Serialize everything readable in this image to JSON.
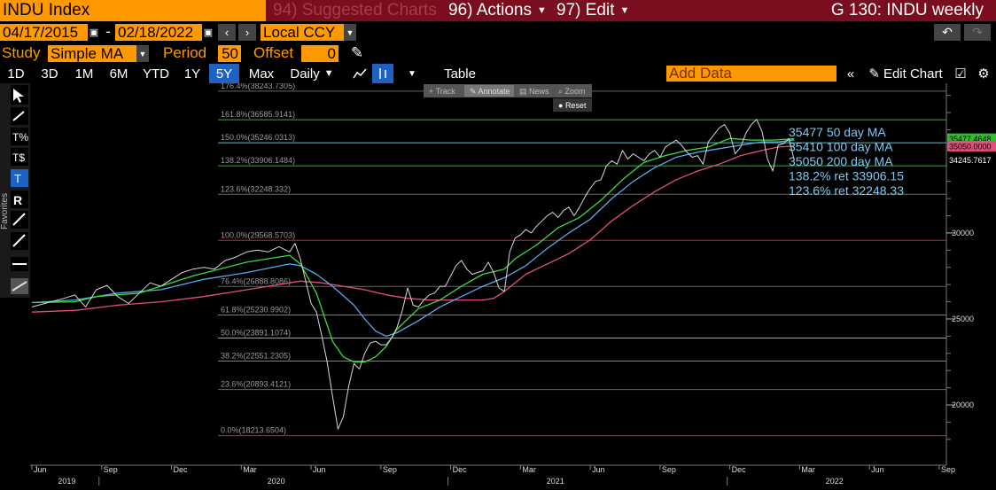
{
  "header": {
    "ticker": "INDU Index",
    "menu_suggested": "94) Suggested Charts",
    "menu_actions": "96) Actions",
    "menu_edit": "97) Edit",
    "page_title": "G 130: INDU weekly"
  },
  "controls": {
    "start_date": "04/17/2015",
    "date_sep": "-",
    "end_date": "02/18/2022",
    "currency": "Local CCY",
    "study_label": "Study",
    "study_value": "Simple MA",
    "period_label": "Period",
    "period_value": "50",
    "offset_label": "Offset",
    "offset_value": "0"
  },
  "toolbar": {
    "ranges": [
      "1D",
      "3D",
      "1M",
      "6M",
      "YTD",
      "1Y",
      "5Y",
      "Max"
    ],
    "active_range": "5Y",
    "frequency": "Daily",
    "table_label": "Table",
    "add_data_placeholder": "Add Data",
    "edit_chart_label": "Edit Chart"
  },
  "chart_toolbar": {
    "track": "Track",
    "annotate": "Annotate",
    "news": "News",
    "zoom": "Zoom",
    "reset": "Reset"
  },
  "side_panel": {
    "favorites_label": "Favorites"
  },
  "chart_data": {
    "type": "line",
    "y_axis_ticks": [
      20000,
      25000,
      30000
    ],
    "ylim": [
      16600,
      38600
    ],
    "x_month_ticks": [
      "Jun",
      "Sep",
      "Dec",
      "Mar",
      "Jun",
      "Sep",
      "Dec",
      "Mar",
      "Jun",
      "Sep",
      "Dec",
      "Mar",
      "Jun",
      "Sep"
    ],
    "x_year_labels": [
      "2019",
      "2020",
      "2021",
      "2022"
    ],
    "fib_levels": [
      {
        "label": "176.4%(38243.7305)",
        "value": 38243.7305,
        "color": "#666666"
      },
      {
        "label": "161.8%(36585.9141)",
        "value": 36585.9141,
        "color": "#22c022"
      },
      {
        "label": "150.0%(35246.0313)",
        "value": 35246.0313,
        "color": "#3ccbd8"
      },
      {
        "label": "138.2%(33906.1484)",
        "value": 33906.1484,
        "color": "#22c022"
      },
      {
        "label": "123.6%(32248.332)",
        "value": 32248.332,
        "color": "#666666"
      },
      {
        "label": "100.0%(29568.5703)",
        "value": 29568.5703,
        "color": "#d81e2a"
      },
      {
        "label": "76.4%(26888.8086)",
        "value": 26888.8086,
        "color": "#666666"
      },
      {
        "label": "61.8%(25230.9902)",
        "value": 25230.9902,
        "color": "#22c022"
      },
      {
        "label": "50.0%(23891.1074)",
        "value": 23891.1074,
        "color": "#3ccbd8"
      },
      {
        "label": "38.2%(22551.2305)",
        "value": 22551.2305,
        "color": "#22c022"
      },
      {
        "label": "23.6%(20893.4121)",
        "value": 20893.4121,
        "color": "#666666"
      },
      {
        "label": "0.0%(18213.6504)",
        "value": 18213.6504,
        "color": "#d81e2a"
      }
    ],
    "annotations": [
      {
        "text": "35477 50 day MA",
        "row": 0
      },
      {
        "text": "35410 100 day MA",
        "row": 1
      },
      {
        "text": "35050 200 day MA",
        "row": 2
      },
      {
        "text": "138.2% ret 33906.15",
        "row": 3
      },
      {
        "text": "123.6% ret 32248.33",
        "row": 4
      }
    ],
    "last_values": [
      {
        "label": "35477.4648",
        "value": 35477.4648,
        "bg": "#2fbf2f",
        "fg": "#000000"
      },
      {
        "label": "35050.0000",
        "value": 35050,
        "bg": "#e0507a",
        "fg": "#000000"
      },
      {
        "label": "34245.7617",
        "value": 34245.7617,
        "bg": "#000000",
        "fg": "#ffffff"
      }
    ],
    "price_series": [
      [
        0,
        25700
      ],
      [
        3,
        25950
      ],
      [
        6,
        26200
      ],
      [
        8,
        26400
      ],
      [
        10,
        25700
      ],
      [
        12,
        26700
      ],
      [
        14,
        26950
      ],
      [
        16,
        26300
      ],
      [
        18,
        25900
      ],
      [
        20,
        26500
      ],
      [
        22,
        27100
      ],
      [
        24,
        26900
      ],
      [
        26,
        27300
      ],
      [
        28,
        27700
      ],
      [
        30,
        27900
      ],
      [
        32,
        28000
      ],
      [
        34,
        27900
      ],
      [
        36,
        28400
      ],
      [
        38,
        28600
      ],
      [
        40,
        28900
      ],
      [
        42,
        29000
      ],
      [
        44,
        28900
      ],
      [
        46,
        29200
      ],
      [
        48,
        28900
      ],
      [
        49,
        29400
      ],
      [
        50,
        28500
      ],
      [
        51,
        27200
      ],
      [
        52,
        25900
      ],
      [
        53,
        25400
      ],
      [
        54,
        24000
      ],
      [
        55,
        22500
      ],
      [
        56,
        20500
      ],
      [
        57,
        18600
      ],
      [
        58,
        19300
      ],
      [
        59,
        21100
      ],
      [
        60,
        22400
      ],
      [
        61,
        22100
      ],
      [
        62,
        23000
      ],
      [
        63,
        23600
      ],
      [
        64,
        23700
      ],
      [
        65,
        23500
      ],
      [
        66,
        23500
      ],
      [
        67,
        23900
      ],
      [
        68,
        24500
      ],
      [
        69,
        25500
      ],
      [
        70,
        26800
      ],
      [
        71,
        25800
      ],
      [
        72,
        25700
      ],
      [
        73,
        26100
      ],
      [
        74,
        26400
      ],
      [
        75,
        26500
      ],
      [
        76,
        26900
      ],
      [
        77,
        26900
      ],
      [
        78,
        27500
      ],
      [
        79,
        28100
      ],
      [
        80,
        28400
      ],
      [
        81,
        27900
      ],
      [
        82,
        27600
      ],
      [
        83,
        27700
      ],
      [
        84,
        27800
      ],
      [
        85,
        28300
      ],
      [
        86,
        27700
      ],
      [
        87,
        26800
      ],
      [
        88,
        26600
      ],
      [
        89,
        28900
      ],
      [
        90,
        29700
      ],
      [
        91,
        29900
      ],
      [
        92,
        30200
      ],
      [
        93,
        30000
      ],
      [
        94,
        30400
      ],
      [
        95,
        30700
      ],
      [
        96,
        31000
      ],
      [
        97,
        31200
      ],
      [
        98,
        30900
      ],
      [
        99,
        31300
      ],
      [
        100,
        31500
      ],
      [
        101,
        31000
      ],
      [
        102,
        31500
      ],
      [
        103,
        32100
      ],
      [
        104,
        32600
      ],
      [
        105,
        33000
      ],
      [
        106,
        33100
      ],
      [
        107,
        33900
      ],
      [
        108,
        34200
      ],
      [
        109,
        34000
      ],
      [
        110,
        34800
      ],
      [
        111,
        34300
      ],
      [
        112,
        34600
      ],
      [
        113,
        34400
      ],
      [
        114,
        34200
      ],
      [
        115,
        34600
      ],
      [
        116,
        34800
      ],
      [
        117,
        34400
      ],
      [
        118,
        35000
      ],
      [
        119,
        35200
      ],
      [
        120,
        35400
      ],
      [
        121,
        35100
      ],
      [
        122,
        34700
      ],
      [
        123,
        34400
      ],
      [
        124,
        34500
      ],
      [
        125,
        34000
      ],
      [
        126,
        35300
      ],
      [
        127,
        35700
      ],
      [
        128,
        36100
      ],
      [
        129,
        36300
      ],
      [
        130,
        35800
      ],
      [
        131,
        34600
      ],
      [
        132,
        35000
      ],
      [
        133,
        35800
      ],
      [
        134,
        36300
      ],
      [
        135,
        36600
      ],
      [
        136,
        35900
      ],
      [
        137,
        34300
      ],
      [
        138,
        33600
      ],
      [
        139,
        35100
      ],
      [
        140,
        35200
      ],
      [
        141,
        35500
      ],
      [
        142,
        34200
      ]
    ],
    "ma_50": [
      [
        0,
        25950
      ],
      [
        8,
        26000
      ],
      [
        12,
        26300
      ],
      [
        20,
        26500
      ],
      [
        30,
        27500
      ],
      [
        40,
        28300
      ],
      [
        48,
        28700
      ],
      [
        50,
        28200
      ],
      [
        53,
        26500
      ],
      [
        56,
        23700
      ],
      [
        58,
        22800
      ],
      [
        60,
        22500
      ],
      [
        62,
        22500
      ],
      [
        64,
        22800
      ],
      [
        66,
        23400
      ],
      [
        68,
        24400
      ],
      [
        72,
        25600
      ],
      [
        76,
        26100
      ],
      [
        80,
        26900
      ],
      [
        84,
        27600
      ],
      [
        88,
        27900
      ],
      [
        90,
        28500
      ],
      [
        94,
        29300
      ],
      [
        98,
        30300
      ],
      [
        102,
        30900
      ],
      [
        106,
        31900
      ],
      [
        110,
        33100
      ],
      [
        114,
        34100
      ],
      [
        118,
        34500
      ],
      [
        122,
        34800
      ],
      [
        126,
        35000
      ],
      [
        130,
        35500
      ],
      [
        134,
        35400
      ],
      [
        138,
        35400
      ],
      [
        142,
        35477
      ]
    ],
    "ma_100": [
      [
        0,
        25950
      ],
      [
        8,
        26100
      ],
      [
        16,
        26500
      ],
      [
        24,
        26700
      ],
      [
        32,
        27300
      ],
      [
        40,
        27700
      ],
      [
        48,
        28200
      ],
      [
        50,
        28100
      ],
      [
        53,
        27600
      ],
      [
        56,
        26900
      ],
      [
        60,
        25800
      ],
      [
        62,
        25000
      ],
      [
        64,
        24300
      ],
      [
        66,
        24000
      ],
      [
        68,
        24200
      ],
      [
        72,
        24900
      ],
      [
        76,
        25700
      ],
      [
        80,
        26300
      ],
      [
        84,
        26900
      ],
      [
        88,
        27400
      ],
      [
        92,
        28100
      ],
      [
        96,
        29100
      ],
      [
        100,
        30000
      ],
      [
        104,
        30800
      ],
      [
        108,
        32000
      ],
      [
        112,
        33000
      ],
      [
        116,
        33800
      ],
      [
        120,
        34400
      ],
      [
        124,
        34700
      ],
      [
        128,
        34900
      ],
      [
        132,
        35100
      ],
      [
        136,
        35300
      ],
      [
        139,
        35300
      ],
      [
        142,
        35410
      ]
    ],
    "ma_200": [
      [
        0,
        25400
      ],
      [
        8,
        25500
      ],
      [
        16,
        25800
      ],
      [
        24,
        26000
      ],
      [
        32,
        26300
      ],
      [
        40,
        26700
      ],
      [
        48,
        27100
      ],
      [
        50,
        27200
      ],
      [
        54,
        27100
      ],
      [
        58,
        26900
      ],
      [
        62,
        26700
      ],
      [
        66,
        26400
      ],
      [
        70,
        26200
      ],
      [
        74,
        26100
      ],
      [
        78,
        26100
      ],
      [
        82,
        26100
      ],
      [
        84,
        26100
      ],
      [
        86,
        26200
      ],
      [
        88,
        26600
      ],
      [
        92,
        27600
      ],
      [
        96,
        28200
      ],
      [
        100,
        28800
      ],
      [
        104,
        29600
      ],
      [
        108,
        30700
      ],
      [
        112,
        31600
      ],
      [
        116,
        32400
      ],
      [
        120,
        33100
      ],
      [
        124,
        33600
      ],
      [
        128,
        34000
      ],
      [
        132,
        34500
      ],
      [
        136,
        34800
      ],
      [
        139,
        35000
      ],
      [
        142,
        35050
      ]
    ]
  }
}
